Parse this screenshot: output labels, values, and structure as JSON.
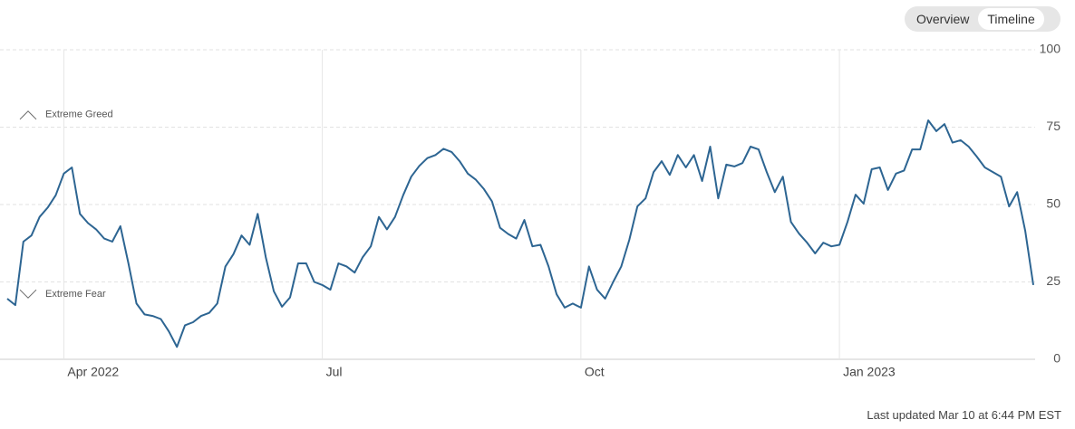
{
  "controls": {
    "tabs": [
      "Overview",
      "Timeline"
    ],
    "active": 1
  },
  "footer": "Last updated Mar 10 at 6:44 PM EST",
  "chart_data": {
    "type": "line",
    "annotations": [
      {
        "text": "Extreme Greed",
        "direction": "up"
      },
      {
        "text": "Extreme Fear",
        "direction": "down"
      }
    ],
    "categories": [
      null,
      null,
      null,
      null,
      null,
      null,
      null,
      "Apr 2022",
      null,
      null,
      null,
      null,
      null,
      null,
      null,
      null,
      null,
      null,
      null,
      null,
      null,
      null,
      null,
      null,
      null,
      null,
      null,
      null,
      null,
      null,
      null,
      null,
      null,
      null,
      null,
      null,
      null,
      null,
      null,
      "Jul",
      null,
      null,
      null,
      null,
      null,
      null,
      null,
      null,
      null,
      null,
      null,
      null,
      null,
      null,
      null,
      null,
      null,
      null,
      null,
      null,
      null,
      null,
      null,
      null,
      null,
      null,
      null,
      null,
      null,
      null,
      null,
      "Oct",
      null,
      null,
      null,
      null,
      null,
      null,
      null,
      null,
      null,
      null,
      null,
      null,
      null,
      null,
      null,
      null,
      null,
      null,
      null,
      null,
      null,
      null,
      null,
      null,
      null,
      null,
      null,
      null,
      null,
      null,
      null,
      "Jan 2023",
      null,
      null,
      null,
      null,
      null,
      null,
      null,
      null,
      null,
      null,
      null,
      null,
      null,
      null,
      null,
      null,
      null,
      null,
      null,
      null,
      null,
      null,
      null,
      null
    ],
    "values": [
      19.6,
      17.5,
      38,
      40,
      46,
      49,
      53,
      60,
      62,
      47,
      44,
      42,
      39,
      38,
      43,
      31,
      18,
      14.5,
      14,
      13,
      9,
      4,
      11,
      12,
      14,
      15,
      18,
      30,
      34,
      40,
      37,
      47,
      33,
      22,
      17,
      20,
      31,
      31,
      25,
      24,
      22.5,
      31,
      30,
      28,
      33,
      36.5,
      46,
      42,
      46,
      53,
      59,
      62.5,
      65,
      66,
      68,
      67,
      64,
      60,
      58,
      55,
      51,
      42.5,
      40.5,
      39,
      45,
      36.5,
      37,
      30,
      21,
      16.7,
      18,
      16.7,
      30,
      22.5,
      19.6,
      25,
      30,
      38.6,
      49.4,
      52,
      60.5,
      64,
      59.6,
      66,
      62,
      66,
      57.6,
      68.7,
      52,
      62.9,
      62.3,
      63.4,
      68.7,
      67.8,
      60.5,
      54,
      59,
      44.4,
      40.6,
      37.7,
      34.2,
      37.7,
      36.5,
      37,
      44.4,
      53.2,
      50.3,
      61.4,
      62,
      54.7,
      60,
      61,
      67.8,
      67.8,
      77.2,
      73.7,
      76,
      70,
      70.8,
      68.7,
      65.5,
      62,
      60.5,
      59,
      49.4,
      54,
      41.5,
      24
    ],
    "color": "#2d6592",
    "ylim": [
      0,
      100
    ],
    "yticks": [
      0,
      25,
      50,
      75,
      100
    ],
    "grid": true
  }
}
